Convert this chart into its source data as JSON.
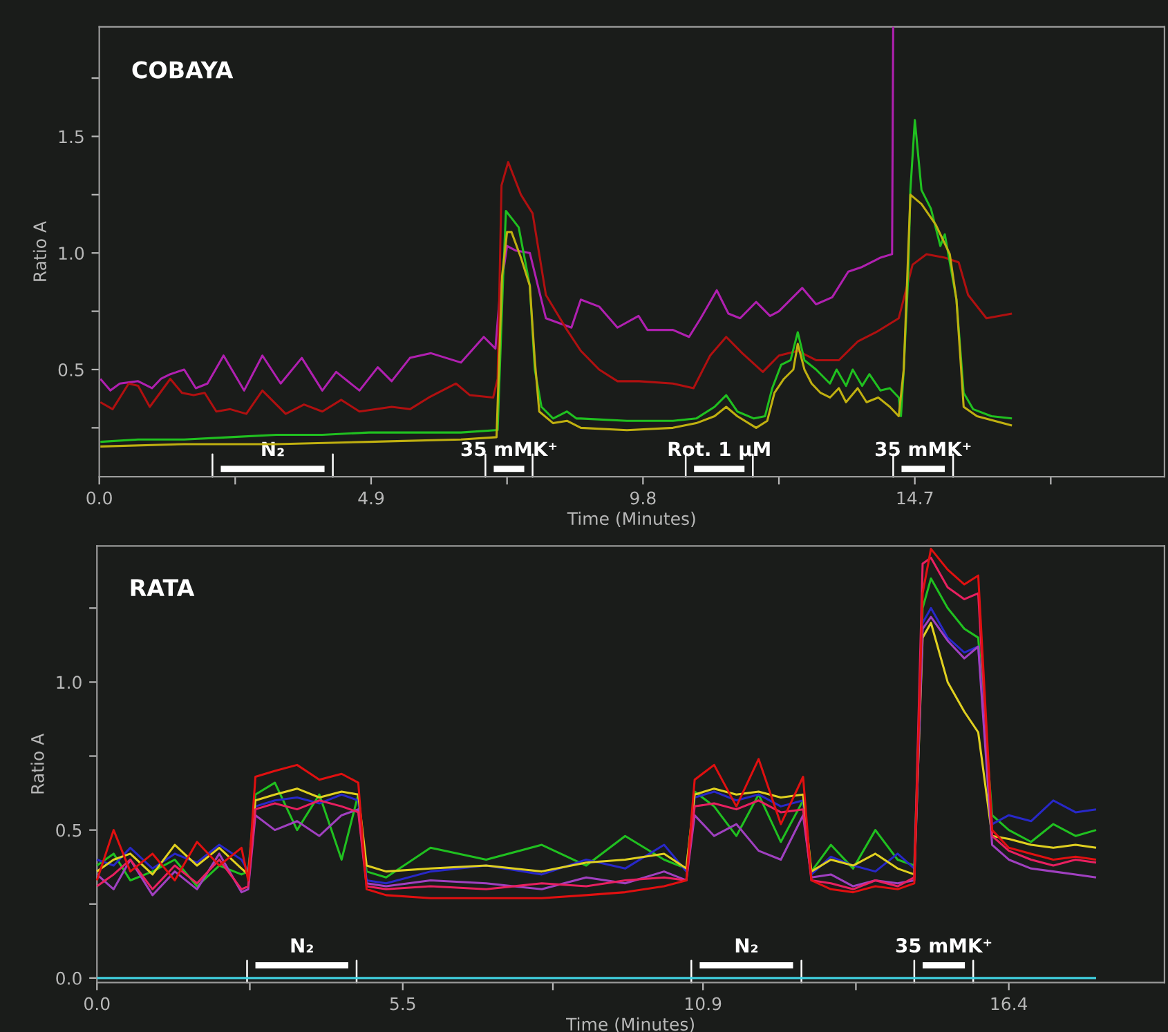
{
  "chart_data": [
    {
      "type": "line",
      "annotations": [
        "COBAYA"
      ],
      "xlabel": "Time (Minutes)",
      "ylabel": "Ratio A",
      "xlim": [
        0,
        19.2
      ],
      "ylim": [
        0.04,
        1.97
      ],
      "xticks": [
        {
          "value": 0,
          "label": "0.0"
        },
        {
          "value": 2.45,
          "label": null
        },
        4.9,
        {
          "value": 7.35,
          "label": null
        },
        9.8,
        {
          "value": 12.25,
          "label": null
        },
        14.7,
        {
          "value": 17.15,
          "label": null
        }
      ],
      "yticks": [
        {
          "value": 0.25,
          "label": null
        },
        {
          "value": 0.5,
          "label": "0.5"
        },
        {
          "value": 0.75,
          "label": null
        },
        {
          "value": 1,
          "label": "1.0"
        },
        {
          "value": 1.25,
          "label": null
        },
        {
          "value": 1.5,
          "label": "1.5"
        },
        {
          "value": 1.75,
          "label": null
        }
      ],
      "series": [
        {
          "name": "N₂",
          "color": "#ffffff",
          "x": [
            2.19,
            4.06
          ],
          "values": [
            0.074,
            0.074
          ]
        },
        {
          "name": "35 mMK⁺",
          "color": "#ffffff",
          "x": [
            7.11,
            7.66
          ],
          "values": [
            0.074,
            0.074
          ]
        },
        {
          "name": "Rot. 1 μM",
          "color": "#ffffff",
          "x": [
            10.72,
            11.63
          ],
          "values": [
            0.074,
            0.074
          ]
        },
        {
          "name": "35 mMK⁺",
          "color": "#ffffff",
          "x": [
            14.46,
            15.24
          ],
          "values": [
            0.074,
            0.074
          ]
        },
        {
          "color": "#b020b0",
          "x": [
            0.02,
            0.2,
            0.37,
            0.7,
            0.95,
            1.11,
            1.28,
            1.53,
            1.74,
            1.95,
            2.24,
            2.61,
            2.94,
            3.27,
            3.65,
            4.02,
            4.27,
            4.69,
            5.02,
            5.27,
            5.6,
            5.98,
            6.52,
            6.93,
            7.14,
            7.22,
            7.35,
            7.51,
            7.76,
            8.05,
            8.51,
            8.68,
            9.01,
            9.34,
            9.72,
            9.88,
            10.34,
            10.63,
            10.84,
            11.13,
            11.34,
            11.55,
            11.84,
            12.09,
            12.25,
            12.67,
            12.92,
            13.21,
            13.5,
            13.75,
            14.08,
            14.29,
            14.31
          ],
          "values": [
            0.46,
            0.41,
            0.44,
            0.45,
            0.42,
            0.46,
            0.48,
            0.5,
            0.42,
            0.44,
            0.56,
            0.41,
            0.56,
            0.44,
            0.55,
            0.41,
            0.49,
            0.41,
            0.51,
            0.45,
            0.55,
            0.57,
            0.53,
            0.64,
            0.59,
            0.82,
            1.03,
            1.01,
            1.0,
            0.72,
            0.68,
            0.8,
            0.77,
            0.68,
            0.73,
            0.67,
            0.67,
            0.64,
            0.72,
            0.84,
            0.74,
            0.72,
            0.79,
            0.73,
            0.75,
            0.85,
            0.78,
            0.81,
            0.92,
            0.94,
            0.98,
            0.995,
            1.97
          ]
        },
        {
          "color": "#b01010",
          "x": [
            0.02,
            0.24,
            0.53,
            0.7,
            0.91,
            1.28,
            1.49,
            1.7,
            1.9,
            2.11,
            2.36,
            2.65,
            2.94,
            3.36,
            3.69,
            4.02,
            4.36,
            4.69,
            5.27,
            5.6,
            5.94,
            6.43,
            6.68,
            7.1,
            7.18,
            7.25,
            7.37,
            7.6,
            7.81,
            8.05,
            8.43,
            8.68,
            9.01,
            9.34,
            9.73,
            10.34,
            10.71,
            11.01,
            11.3,
            11.59,
            11.96,
            12.25,
            12.59,
            12.92,
            13.33,
            13.67,
            14.0,
            14.41,
            14.54,
            14.66,
            14.91,
            15.24,
            15.49,
            15.66,
            15.99,
            16.45
          ],
          "values": [
            0.36,
            0.33,
            0.44,
            0.43,
            0.34,
            0.46,
            0.4,
            0.39,
            0.4,
            0.32,
            0.33,
            0.31,
            0.41,
            0.31,
            0.35,
            0.32,
            0.37,
            0.32,
            0.34,
            0.33,
            0.38,
            0.44,
            0.39,
            0.38,
            0.46,
            1.29,
            1.39,
            1.25,
            1.17,
            0.82,
            0.67,
            0.58,
            0.5,
            0.45,
            0.45,
            0.44,
            0.42,
            0.56,
            0.64,
            0.57,
            0.49,
            0.56,
            0.58,
            0.54,
            0.54,
            0.62,
            0.66,
            0.72,
            0.84,
            0.95,
            0.995,
            0.98,
            0.96,
            0.82,
            0.72,
            0.74
          ]
        },
        {
          "color": "#20c020",
          "x": [
            0.02,
            0.7,
            1.53,
            2.36,
            3.19,
            4.02,
            4.86,
            5.69,
            6.52,
            7.14,
            7.18,
            7.28,
            7.33,
            7.43,
            7.56,
            7.76,
            7.85,
            7.97,
            8.18,
            8.43,
            8.6,
            8.68,
            9.51,
            10.34,
            10.76,
            11.09,
            11.3,
            11.5,
            11.8,
            12.0,
            12.13,
            12.29,
            12.46,
            12.59,
            12.71,
            12.92,
            13.17,
            13.29,
            13.46,
            13.58,
            13.75,
            13.88,
            14.08,
            14.25,
            14.41,
            14.45,
            14.5,
            14.58,
            14.62,
            14.7,
            14.82,
            14.99,
            15.16,
            15.24,
            15.33,
            15.45,
            15.58,
            15.75,
            16.08,
            16.45
          ],
          "values": [
            0.19,
            0.2,
            0.2,
            0.21,
            0.22,
            0.22,
            0.23,
            0.23,
            0.23,
            0.24,
            0.24,
            0.9,
            1.18,
            1.15,
            1.11,
            0.86,
            0.5,
            0.34,
            0.29,
            0.32,
            0.29,
            0.29,
            0.28,
            0.28,
            0.29,
            0.34,
            0.39,
            0.32,
            0.29,
            0.3,
            0.42,
            0.52,
            0.54,
            0.66,
            0.54,
            0.5,
            0.44,
            0.5,
            0.43,
            0.5,
            0.43,
            0.48,
            0.41,
            0.42,
            0.38,
            0.3,
            0.5,
            0.9,
            1.27,
            1.57,
            1.27,
            1.19,
            1.03,
            1.08,
            0.96,
            0.8,
            0.4,
            0.33,
            0.3,
            0.29
          ]
        },
        {
          "color": "#c0b010",
          "x": [
            0.02,
            1.53,
            3.19,
            4.86,
            6.52,
            7.16,
            7.26,
            7.35,
            7.43,
            7.6,
            7.76,
            7.85,
            7.93,
            8.18,
            8.43,
            8.68,
            9.51,
            10.34,
            10.76,
            11.09,
            11.3,
            11.5,
            11.84,
            12.04,
            12.17,
            12.34,
            12.51,
            12.59,
            12.71,
            12.84,
            13.0,
            13.17,
            13.33,
            13.46,
            13.67,
            13.83,
            14.04,
            14.25,
            14.41,
            14.5,
            14.62,
            14.82,
            15.08,
            15.33,
            15.45,
            15.58,
            15.82,
            16.45
          ],
          "values": [
            0.17,
            0.18,
            0.18,
            0.19,
            0.2,
            0.21,
            0.9,
            1.09,
            1.09,
            0.98,
            0.86,
            0.54,
            0.32,
            0.27,
            0.28,
            0.25,
            0.24,
            0.25,
            0.27,
            0.3,
            0.34,
            0.3,
            0.25,
            0.28,
            0.4,
            0.46,
            0.5,
            0.61,
            0.5,
            0.44,
            0.4,
            0.38,
            0.42,
            0.36,
            0.42,
            0.36,
            0.38,
            0.34,
            0.3,
            0.5,
            1.25,
            1.21,
            1.12,
            0.995,
            0.8,
            0.34,
            0.3,
            0.26
          ]
        }
      ]
    },
    {
      "type": "line",
      "annotations": [
        "RATA"
      ],
      "xlabel": "Time (Minutes)",
      "ylabel": "Ratio A",
      "xlim": [
        0,
        19.2
      ],
      "ylim": [
        -0.015,
        1.46
      ],
      "xticks": [
        {
          "value": 0,
          "label": "0.0"
        },
        {
          "value": 2.75,
          "label": null
        },
        5.5,
        {
          "value": 8.2,
          "label": null
        },
        10.9,
        {
          "value": 13.65,
          "label": null
        },
        16.4
      ],
      "yticks": [
        {
          "value": 0,
          "label": "0.0"
        },
        {
          "value": 0.25,
          "label": null
        },
        0.5,
        {
          "value": 0.75,
          "label": null
        },
        {
          "value": 1,
          "label": "1.0"
        },
        {
          "value": 1.25,
          "label": null
        }
      ],
      "x": [
        0,
        0.3,
        0.6,
        1.0,
        1.4,
        1.8,
        2.2,
        2.6,
        2.72,
        2.85,
        3.2,
        3.6,
        4.0,
        4.4,
        4.7,
        4.85,
        5.2,
        6,
        7,
        8,
        8.8,
        9.5,
        10.2,
        10.6,
        10.75,
        11.1,
        11.5,
        11.9,
        12.3,
        12.7,
        12.85,
        13.2,
        13.6,
        14.0,
        14.4,
        14.7,
        14.85,
        15.0,
        15.3,
        15.6,
        15.85,
        16.1,
        16.4,
        16.8,
        17.2,
        17.6,
        17.97
      ],
      "series": [
        {
          "name": "N₂",
          "color": "#ffffff",
          "x": [
            2.85,
            4.52
          ],
          "values": [
            0.043,
            0.043
          ]
        },
        {
          "name": "N₂",
          "color": "#ffffff",
          "x": [
            10.84,
            12.52
          ],
          "values": [
            0.043,
            0.043
          ]
        },
        {
          "name": "35 mMK⁺",
          "color": "#ffffff",
          "x": [
            14.85,
            15.61
          ],
          "values": [
            0.043,
            0.043
          ]
        },
        {
          "color": "#20c020",
          "values": [
            0.38,
            0.42,
            0.33,
            0.36,
            0.4,
            0.31,
            0.38,
            0.35,
            0.36,
            0.62,
            0.66,
            0.5,
            0.62,
            0.4,
            0.62,
            0.36,
            0.34,
            0.44,
            0.4,
            0.45,
            0.38,
            0.48,
            0.4,
            0.37,
            0.63,
            0.58,
            0.48,
            0.62,
            0.46,
            0.6,
            0.36,
            0.45,
            0.37,
            0.5,
            0.4,
            0.38,
            1.25,
            1.35,
            1.25,
            1.18,
            1.15,
            0.55,
            0.5,
            0.46,
            0.52,
            0.48,
            0.5
          ]
        },
        {
          "color": "#2828c8",
          "values": [
            0.4,
            0.38,
            0.44,
            0.37,
            0.42,
            0.39,
            0.45,
            0.4,
            0.36,
            0.58,
            0.6,
            0.61,
            0.59,
            0.62,
            0.6,
            0.33,
            0.32,
            0.36,
            0.38,
            0.35,
            0.4,
            0.37,
            0.45,
            0.36,
            0.61,
            0.63,
            0.6,
            0.62,
            0.58,
            0.6,
            0.35,
            0.41,
            0.38,
            0.36,
            0.42,
            0.37,
            1.2,
            1.25,
            1.15,
            1.1,
            1.12,
            0.52,
            0.55,
            0.53,
            0.6,
            0.56,
            0.57
          ]
        },
        {
          "color": "#e0d020",
          "values": [
            0.36,
            0.4,
            0.42,
            0.35,
            0.45,
            0.38,
            0.44,
            0.37,
            0.35,
            0.6,
            0.62,
            0.64,
            0.61,
            0.63,
            0.62,
            0.38,
            0.36,
            0.37,
            0.38,
            0.36,
            0.39,
            0.4,
            0.42,
            0.37,
            0.62,
            0.64,
            0.62,
            0.63,
            0.61,
            0.62,
            0.36,
            0.4,
            0.38,
            0.42,
            0.37,
            0.35,
            1.15,
            1.2,
            1.0,
            0.9,
            0.83,
            0.48,
            0.47,
            0.45,
            0.44,
            0.45,
            0.44
          ]
        },
        {
          "color": "#a040c0",
          "values": [
            0.35,
            0.3,
            0.4,
            0.28,
            0.36,
            0.3,
            0.42,
            0.29,
            0.3,
            0.55,
            0.5,
            0.53,
            0.48,
            0.55,
            0.57,
            0.32,
            0.31,
            0.33,
            0.32,
            0.3,
            0.34,
            0.32,
            0.36,
            0.33,
            0.55,
            0.48,
            0.52,
            0.43,
            0.4,
            0.55,
            0.34,
            0.35,
            0.31,
            0.33,
            0.32,
            0.33,
            1.18,
            1.22,
            1.14,
            1.08,
            1.12,
            0.45,
            0.4,
            0.37,
            0.36,
            0.35,
            0.34
          ]
        },
        {
          "color": "#e82060",
          "values": [
            0.31,
            0.35,
            0.4,
            0.3,
            0.38,
            0.32,
            0.4,
            0.3,
            0.31,
            0.57,
            0.59,
            0.57,
            0.6,
            0.58,
            0.56,
            0.31,
            0.3,
            0.31,
            0.3,
            0.32,
            0.31,
            0.33,
            0.34,
            0.33,
            0.58,
            0.59,
            0.57,
            0.6,
            0.56,
            0.57,
            0.33,
            0.32,
            0.3,
            0.33,
            0.31,
            0.34,
            1.4,
            1.42,
            1.32,
            1.28,
            1.3,
            0.48,
            0.43,
            0.4,
            0.38,
            0.4,
            0.39
          ]
        },
        {
          "color": "#e01010",
          "values": [
            0.33,
            0.5,
            0.36,
            0.42,
            0.33,
            0.46,
            0.38,
            0.44,
            0.33,
            0.68,
            0.7,
            0.72,
            0.67,
            0.69,
            0.66,
            0.3,
            0.28,
            0.27,
            0.27,
            0.27,
            0.28,
            0.29,
            0.31,
            0.33,
            0.67,
            0.72,
            0.58,
            0.74,
            0.52,
            0.68,
            0.33,
            0.3,
            0.29,
            0.31,
            0.3,
            0.32,
            1.3,
            1.45,
            1.38,
            1.33,
            1.36,
            0.5,
            0.44,
            0.42,
            0.4,
            0.41,
            0.4
          ]
        },
        {
          "color": "#40d0e0",
          "x": [
            0,
            17.97
          ],
          "values": [
            0.0,
            0.0
          ]
        }
      ]
    }
  ]
}
